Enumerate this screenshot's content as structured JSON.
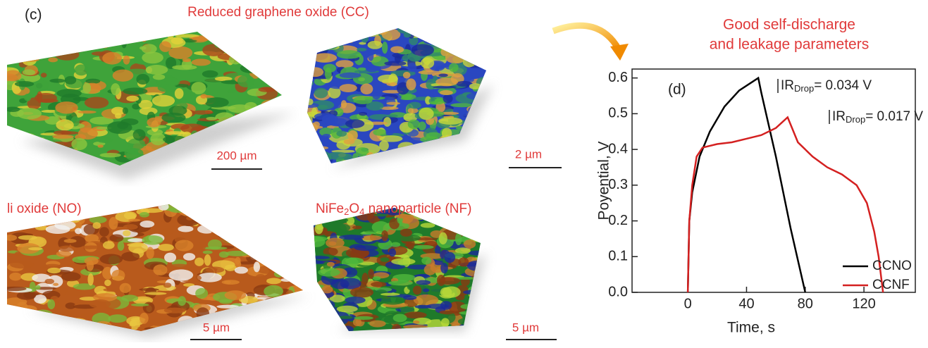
{
  "panel_c": {
    "label": "(c)",
    "images": [
      {
        "title": "Reduced graphene oxide (CC)",
        "scale": "200 µm"
      },
      {
        "scale": "2 µm"
      },
      {
        "title": "li oxide (NO)",
        "scale": "5 µm"
      },
      {
        "title_parts": [
          "NiFe",
          "2",
          "O",
          "4",
          " nanoparticle (NF)"
        ],
        "scale": "5 µm"
      }
    ]
  },
  "chart_data": {
    "type": "line",
    "panel_label": "(d)",
    "title": [
      "Good self-discharge",
      "and leakage parameters"
    ],
    "x_label": "Time, s",
    "y_label": "Poyential, V",
    "xlim": [
      -38,
      155
    ],
    "xticks": [
      0,
      40,
      80,
      120
    ],
    "ylim": [
      0,
      0.625
    ],
    "yticks": [
      {
        "value": 0,
        "label": "0.0"
      },
      0.1,
      0.2,
      0.3,
      0.4,
      0.5,
      0.6
    ],
    "series": [
      {
        "name": "CCNO",
        "color": "#000000",
        "x": [
          0,
          1,
          3,
          8,
          15,
          25,
          35,
          48,
          50,
          55,
          60,
          65,
          70,
          75,
          80
        ],
        "values": [
          0,
          0.2,
          0.28,
          0.38,
          0.45,
          0.52,
          0.565,
          0.6,
          0.56,
          0.47,
          0.38,
          0.28,
          0.18,
          0.09,
          0
        ]
      },
      {
        "name": "CCNF",
        "color": "#d42020",
        "x": [
          0,
          1,
          3,
          6,
          10,
          20,
          30,
          40,
          50,
          60,
          68,
          70,
          75,
          85,
          95,
          105,
          115,
          122,
          127,
          130,
          133
        ],
        "values": [
          0,
          0.2,
          0.3,
          0.38,
          0.405,
          0.415,
          0.42,
          0.43,
          0.44,
          0.46,
          0.49,
          0.47,
          0.42,
          0.38,
          0.35,
          0.33,
          0.3,
          0.25,
          0.17,
          0.1,
          0
        ]
      }
    ],
    "annotations": [
      {
        "text": "IR",
        "sub": "Drop",
        "suffix": "= 0.034 V"
      },
      {
        "text": "IR",
        "sub": "Drop",
        "suffix": "= 0.017 V"
      }
    ],
    "legend": "lower right"
  }
}
